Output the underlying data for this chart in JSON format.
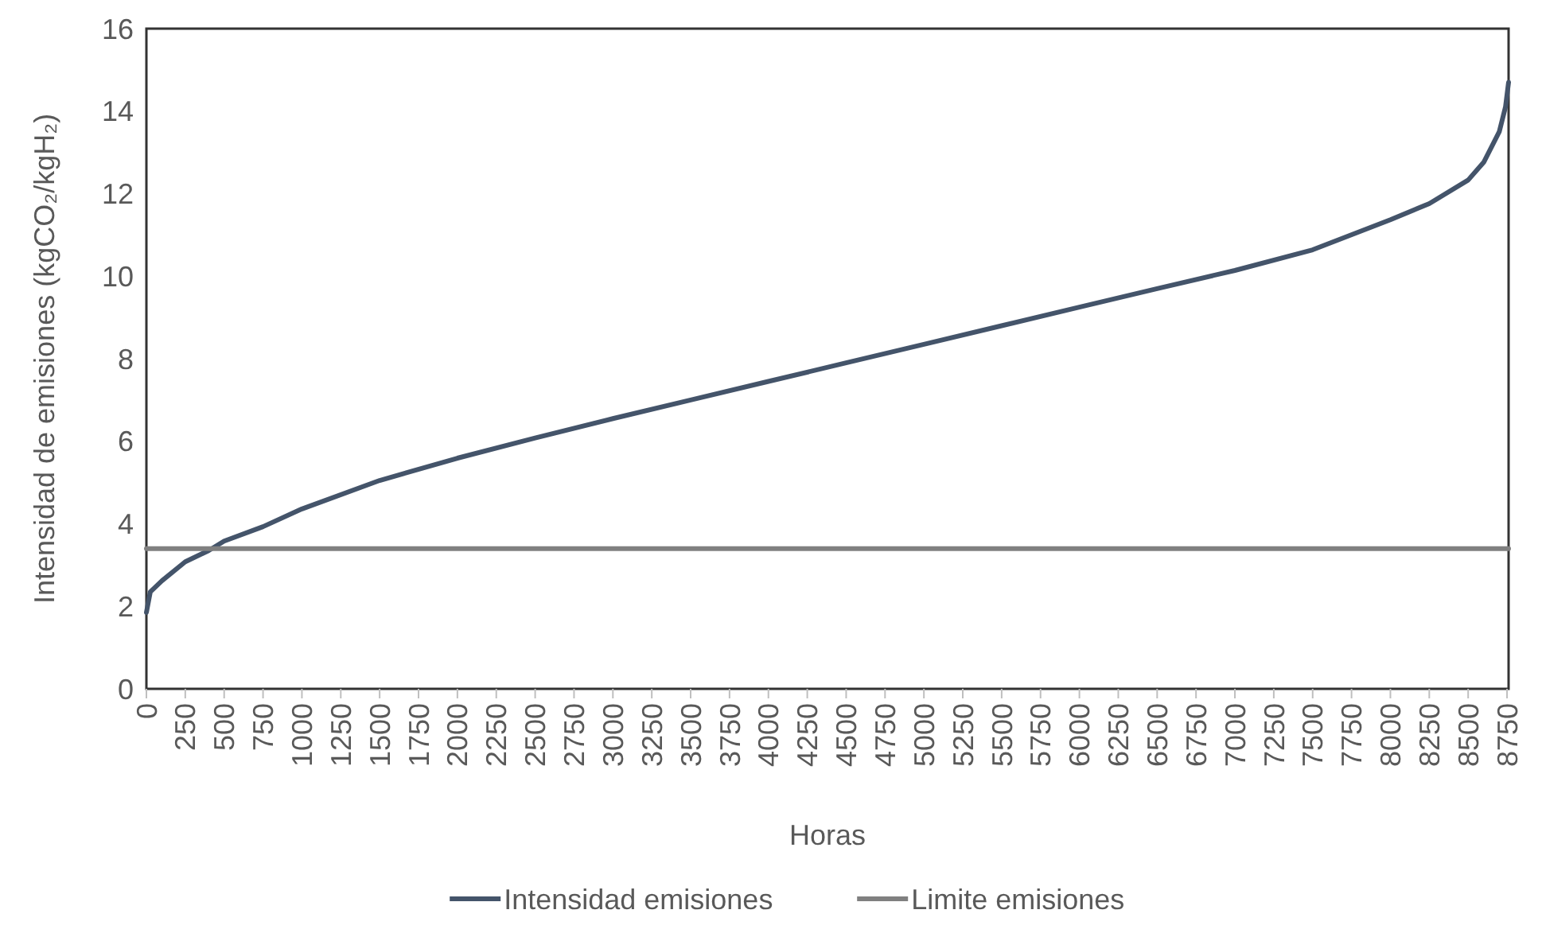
{
  "chart_data": {
    "type": "line",
    "xlabel": "Horas",
    "ylabel": "Intensidad de emisiones (kgCO₂/kgH₂)",
    "xlim": [
      0,
      8760
    ],
    "xticks": [
      0,
      250,
      500,
      750,
      1000,
      1250,
      1500,
      1750,
      2000,
      2250,
      2500,
      2750,
      3000,
      3250,
      3500,
      3750,
      4000,
      4250,
      4500,
      4750,
      5000,
      5250,
      5500,
      5750,
      6000,
      6250,
      6500,
      6750,
      7000,
      7250,
      7500,
      7750,
      8000,
      8250,
      8500,
      8750
    ],
    "ylim": [
      0,
      16
    ],
    "yticks": [
      0,
      2,
      4,
      6,
      8,
      10,
      12,
      14,
      16
    ],
    "grid": false,
    "legend": "bottom",
    "marker": "none",
    "line_style": "solid",
    "series": [
      {
        "name": "Intensidad emisiones",
        "color": "#44546a",
        "x": [
          0,
          25,
          100,
          250,
          400,
          500,
          750,
          1000,
          1500,
          2000,
          2500,
          3000,
          3500,
          4000,
          4500,
          5000,
          5500,
          6000,
          6500,
          7000,
          7500,
          8000,
          8250,
          8500,
          8600,
          8700,
          8740,
          8760
        ],
        "values": [
          1.85,
          2.35,
          2.62,
          3.08,
          3.35,
          3.58,
          3.93,
          4.36,
          5.05,
          5.59,
          6.08,
          6.55,
          7.0,
          7.45,
          7.9,
          8.35,
          8.8,
          9.25,
          9.7,
          10.14,
          10.64,
          11.37,
          11.76,
          12.33,
          12.76,
          13.5,
          14.1,
          14.7
        ]
      },
      {
        "name": "Limite emisiones",
        "color": "#808080",
        "x": [
          0,
          8760
        ],
        "values": [
          3.4,
          3.4
        ]
      }
    ]
  }
}
